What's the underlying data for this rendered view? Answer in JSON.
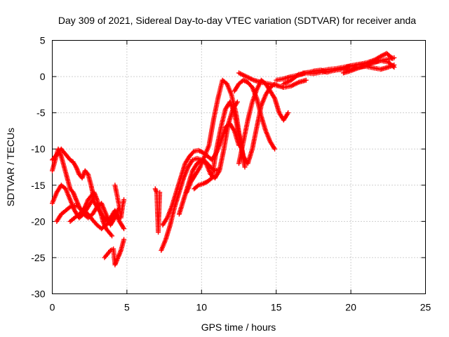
{
  "chart_data": {
    "type": "scatter",
    "title": "Day 309 of 2021, Sidereal Day-to-day VTEC variation (SDTVAR) for receiver anda",
    "xlabel": "GPS time / hours",
    "ylabel": "SDTVAR / TECUs",
    "xlim": [
      0,
      25
    ],
    "ylim": [
      -30,
      5
    ],
    "xticks": [
      0,
      5,
      10,
      15,
      20,
      25
    ],
    "yticks": [
      -30,
      -25,
      -20,
      -15,
      -10,
      -5,
      0,
      5
    ],
    "xtick_labels": [
      "0",
      "5",
      "10",
      "15",
      "20",
      "25"
    ],
    "ytick_labels": [
      "-30",
      "-25",
      "-20",
      "-15",
      "-10",
      "-5",
      "0",
      "5"
    ],
    "grid": true,
    "marker": "+",
    "color": "#ff0000",
    "series": [
      {
        "x": [
          0.0,
          0.2,
          0.4,
          0.6,
          0.8,
          1.0,
          1.2,
          1.4,
          1.6,
          1.8,
          2.0,
          2.2,
          2.4,
          2.6,
          2.8,
          3.0,
          3.2,
          3.4,
          3.6,
          3.8,
          4.0
        ],
        "y": [
          -13,
          -11.5,
          -10,
          -11,
          -12.5,
          -14,
          -15.5,
          -16,
          -17,
          -18,
          -18.5,
          -18,
          -17,
          -16.5,
          -16,
          -17,
          -18.5,
          -20,
          -21,
          -21.5,
          -22
        ]
      },
      {
        "x": [
          0.0,
          0.3,
          0.6,
          0.9,
          1.2,
          1.5,
          1.8,
          2.1,
          2.4,
          2.7,
          3.0,
          3.3,
          3.6,
          3.9,
          4.2,
          4.5,
          4.8
        ],
        "y": [
          -17.5,
          -16,
          -15,
          -15.5,
          -17,
          -18.5,
          -19.5,
          -19,
          -18,
          -17,
          -18,
          -19,
          -20,
          -19.5,
          -18.5,
          -20,
          -21
        ]
      },
      {
        "x": [
          0.0,
          0.2,
          0.4,
          0.6,
          0.8,
          1.0,
          1.2,
          1.4,
          1.6,
          1.8,
          2.0,
          2.2,
          2.4,
          2.6,
          2.8
        ],
        "y": [
          -11.5,
          -11,
          -10.5,
          -10,
          -10.5,
          -11,
          -11.5,
          -11.8,
          -12.5,
          -13.5,
          -14,
          -13,
          -13.5,
          -15,
          -17
        ]
      },
      {
        "x": [
          0.3,
          0.6,
          0.9,
          1.2,
          1.5,
          1.8,
          2.1,
          2.4,
          2.7,
          3.0,
          3.3,
          3.6,
          3.9,
          4.2,
          4.5
        ],
        "y": [
          -20,
          -19,
          -18.5,
          -18,
          -17.8,
          -18,
          -19,
          -19.5,
          -19,
          -18,
          -17.5,
          -19,
          -20.5,
          -19.5,
          -18
        ]
      },
      {
        "x": [
          1.2,
          1.5,
          1.8,
          2.1,
          2.4,
          2.7,
          3.0,
          3.3,
          3.6,
          3.9,
          4.2
        ],
        "y": [
          -20,
          -19.5,
          -19,
          -18.5,
          -19,
          -19.8,
          -20.5,
          -21,
          -20.5,
          -20,
          -19
        ]
      },
      {
        "x": [
          3.5,
          3.7,
          3.9,
          4.1,
          4.2,
          4.4,
          4.6,
          4.8
        ],
        "y": [
          -25,
          -24.5,
          -24,
          -23.8,
          -26,
          -25,
          -24,
          -22.5
        ]
      },
      {
        "x": [
          4.2,
          4.3,
          4.4,
          4.5,
          4.6,
          4.7,
          4.8
        ],
        "y": [
          -15,
          -16,
          -17,
          -18,
          -19.5,
          -18,
          -17
        ]
      },
      {
        "x": [
          6.9,
          7.0,
          7.1,
          7.2
        ],
        "y": [
          -15.5,
          -16,
          -21.5,
          -16
        ]
      },
      {
        "x": [
          7.3,
          7.6,
          7.9,
          8.2,
          8.5,
          8.8,
          9.1,
          9.4,
          9.7,
          10.0,
          10.3,
          10.6,
          10.9,
          11.2
        ],
        "y": [
          -24,
          -22.5,
          -20.5,
          -18,
          -16,
          -14,
          -12.5,
          -11.5,
          -11.3,
          -11.5,
          -11.8,
          -12.5,
          -13,
          -12.8
        ]
      },
      {
        "x": [
          7.4,
          7.7,
          8.0,
          8.3,
          8.6,
          8.9,
          9.2,
          9.5,
          9.8,
          10.1,
          10.4,
          10.7,
          11.0,
          11.3,
          11.6,
          11.9,
          12.2,
          12.5
        ],
        "y": [
          -20.5,
          -19.5,
          -18,
          -16,
          -14,
          -12,
          -11,
          -10.3,
          -10.2,
          -10.5,
          -11,
          -11.5,
          -10.5,
          -9,
          -7,
          -6.5,
          -7.5,
          -9.5
        ]
      },
      {
        "x": [
          8.5,
          8.8,
          9.1,
          9.4,
          9.7,
          10.0,
          10.3,
          10.6,
          10.9,
          11.2,
          11.5,
          11.8,
          12.1,
          12.4
        ],
        "y": [
          -19,
          -17,
          -15,
          -13,
          -12,
          -11.5,
          -12,
          -13.5,
          -14,
          -13,
          -10,
          -6.5,
          -4.5,
          -3.5
        ]
      },
      {
        "x": [
          9.0,
          9.3,
          9.6,
          9.9,
          10.2,
          10.5,
          10.8,
          11.1,
          11.4,
          11.7,
          12.0,
          12.3,
          12.6,
          12.9
        ],
        "y": [
          -16,
          -14.5,
          -13.5,
          -12.5,
          -11,
          -9.5,
          -6,
          -3,
          -0.5,
          -1,
          -2.5,
          -5,
          -9,
          -12.5
        ]
      },
      {
        "x": [
          9.5,
          9.8,
          10.1,
          10.4,
          10.7,
          11.0,
          11.3,
          11.6,
          11.9,
          12.2,
          12.5,
          12.8,
          13.1,
          13.4,
          13.7,
          14.0,
          14.3,
          14.6,
          14.9
        ],
        "y": [
          -15.5,
          -15,
          -14.8,
          -14.5,
          -14,
          -10,
          -7,
          -4.5,
          -3.5,
          -5,
          -8,
          -11,
          -12,
          -10,
          -7,
          -4,
          -2.5,
          -1.5,
          -1
        ]
      },
      {
        "x": [
          12.5,
          12.8,
          13.1,
          13.4,
          13.7,
          14.0,
          14.3,
          14.6,
          14.9,
          15.2,
          15.5,
          15.8
        ],
        "y": [
          -12,
          -9,
          -6,
          -3.5,
          -1.8,
          -0.5,
          -1,
          -2,
          -3,
          -5,
          -6,
          -5
        ]
      },
      {
        "x": [
          12.2,
          12.5,
          12.8,
          13.1,
          13.4,
          13.7,
          14.0,
          14.3,
          14.6,
          14.9
        ],
        "y": [
          -2,
          -1,
          -0.5,
          -0.8,
          -1.5,
          -3,
          -5.5,
          -7.5,
          -9,
          -10
        ]
      },
      {
        "x": [
          12.5,
          13.0,
          13.5,
          14.0,
          14.5,
          15.0,
          15.5,
          16.0,
          16.5,
          17.0
        ],
        "y": [
          0.5,
          0,
          -0.5,
          -0.8,
          -1,
          -1.2,
          -1.5,
          -1.3,
          -0.8,
          -0.5
        ]
      },
      {
        "x": [
          15.0,
          15.5,
          16.0,
          16.5,
          17.0,
          17.5,
          18.0,
          18.5,
          19.0,
          19.5,
          20.0,
          20.5,
          21.0,
          21.5,
          22.0,
          22.5,
          22.9
        ],
        "y": [
          -0.5,
          -0.3,
          0,
          0.2,
          0.5,
          0.7,
          0.8,
          1.0,
          1.1,
          1.3,
          1.5,
          1.7,
          1.8,
          2.0,
          2.2,
          2.4,
          2.6
        ]
      },
      {
        "x": [
          15.5,
          16.0,
          16.5,
          17.0,
          17.5,
          18.0,
          18.5,
          19.0,
          19.5,
          20.0,
          20.5,
          21.0,
          21.5,
          22.0,
          22.5,
          22.9
        ],
        "y": [
          -1,
          -0.5,
          0.3,
          0.5,
          0.4,
          0.6,
          0.7,
          0.9,
          1.0,
          1.0,
          1.3,
          1.4,
          1.2,
          1.0,
          1.3,
          1.6
        ]
      },
      {
        "x": [
          16.8,
          17.2,
          17.6,
          18.0,
          18.4,
          18.8,
          19.2,
          19.6,
          20.0,
          20.4,
          20.8,
          21.2,
          21.6,
          22.0,
          22.4,
          22.8
        ],
        "y": [
          0.5,
          0.6,
          0.8,
          0.9,
          0.6,
          0.8,
          1.0,
          1.2,
          1.5,
          1.6,
          1.8,
          2.0,
          2.3,
          2.8,
          3.2,
          2.5
        ]
      },
      {
        "x": [
          19.5,
          20.0,
          20.5,
          21.0,
          21.5,
          22.0,
          22.5,
          22.9
        ],
        "y": [
          0.5,
          0.8,
          1.2,
          1.5,
          1.9,
          2.2,
          2.0,
          1.3
        ]
      }
    ]
  }
}
